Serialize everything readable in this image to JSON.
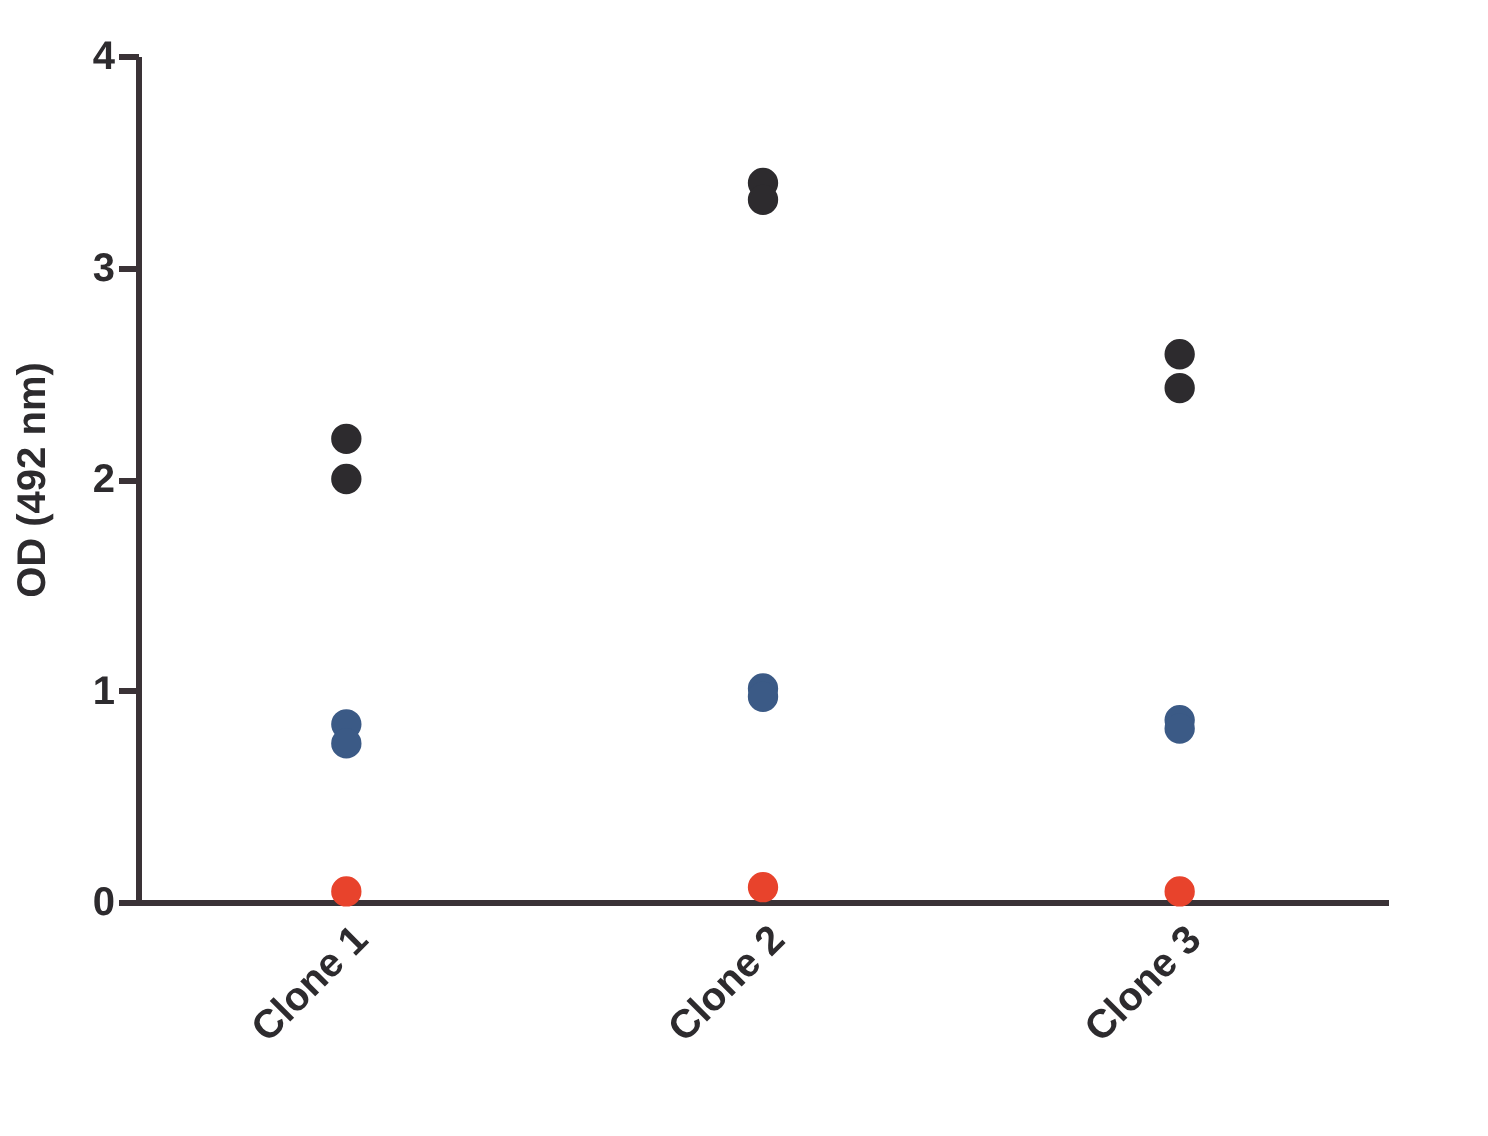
{
  "chart_data": {
    "type": "scatter",
    "ylabel": "OD (492 nm)",
    "categories": [
      "Clone 1",
      "Clone 2",
      "Clone 3"
    ],
    "series": [
      {
        "color": "#2d2b2e",
        "x": [
          "Clone 1",
          "Clone 1",
          "Clone 2",
          "Clone 2",
          "Clone 3",
          "Clone 3"
        ],
        "values": [
          2.19,
          2.0,
          3.4,
          3.32,
          2.59,
          2.43
        ]
      },
      {
        "color": "#3b5a86",
        "x": [
          "Clone 1",
          "Clone 1",
          "Clone 2",
          "Clone 2",
          "Clone 3",
          "Clone 3"
        ],
        "values": [
          0.84,
          0.75,
          1.01,
          0.97,
          0.86,
          0.82
        ]
      },
      {
        "color": "#e8432c",
        "x": [
          "Clone 1",
          "Clone 2",
          "Clone 3"
        ],
        "values": [
          0.05,
          0.07,
          0.05
        ]
      }
    ],
    "ylim": [
      0,
      4
    ],
    "yticks": [
      0,
      1,
      2,
      3,
      4
    ],
    "grid": false,
    "legend": false,
    "marker": "circle"
  }
}
